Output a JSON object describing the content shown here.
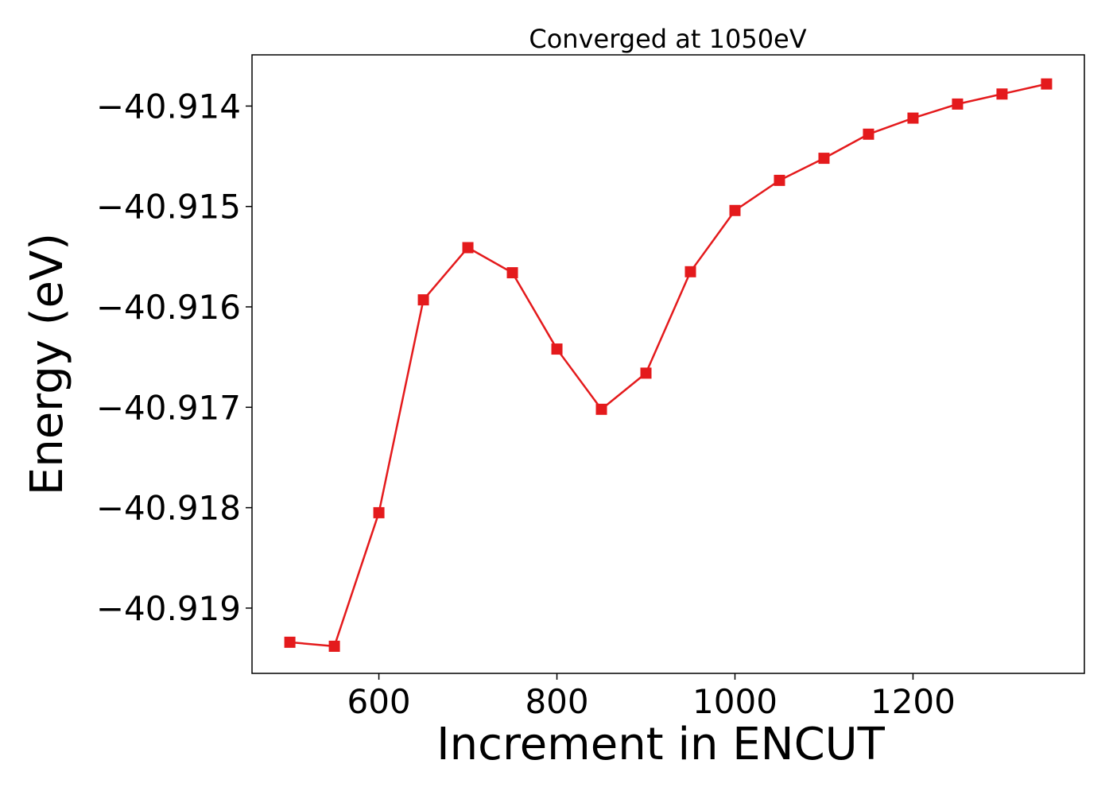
{
  "chart_data": {
    "type": "line",
    "title": "Converged at 1050eV",
    "xlabel": "Increment in ENCUT",
    "ylabel": "Energy (eV)",
    "x_ticks": [
      600,
      800,
      1000,
      1200
    ],
    "y_ticks": [
      -40.919,
      -40.918,
      -40.917,
      -40.916,
      -40.915,
      -40.914
    ],
    "y_tick_labels": [
      "−40.919",
      "−40.918",
      "−40.917",
      "−40.916",
      "−40.915",
      "−40.914"
    ],
    "xlim": [
      457.5,
      1392.5
    ],
    "ylim": [
      -40.91965,
      -40.91349
    ],
    "grid": false,
    "legend": "none",
    "marker": "square",
    "color": "#e41a1c",
    "series": [
      {
        "x": [
          500,
          550,
          600,
          650,
          700,
          750,
          800,
          850,
          900,
          950,
          1000,
          1050,
          1100,
          1150,
          1200,
          1250,
          1300,
          1350
        ],
        "y": [
          -40.91934,
          -40.91938,
          -40.91805,
          -40.91593,
          -40.91541,
          -40.91566,
          -40.91642,
          -40.91702,
          -40.91666,
          -40.91565,
          -40.91504,
          -40.91474,
          -40.91452,
          -40.91428,
          -40.91412,
          -40.91398,
          -40.91388,
          -40.91378
        ]
      }
    ]
  }
}
